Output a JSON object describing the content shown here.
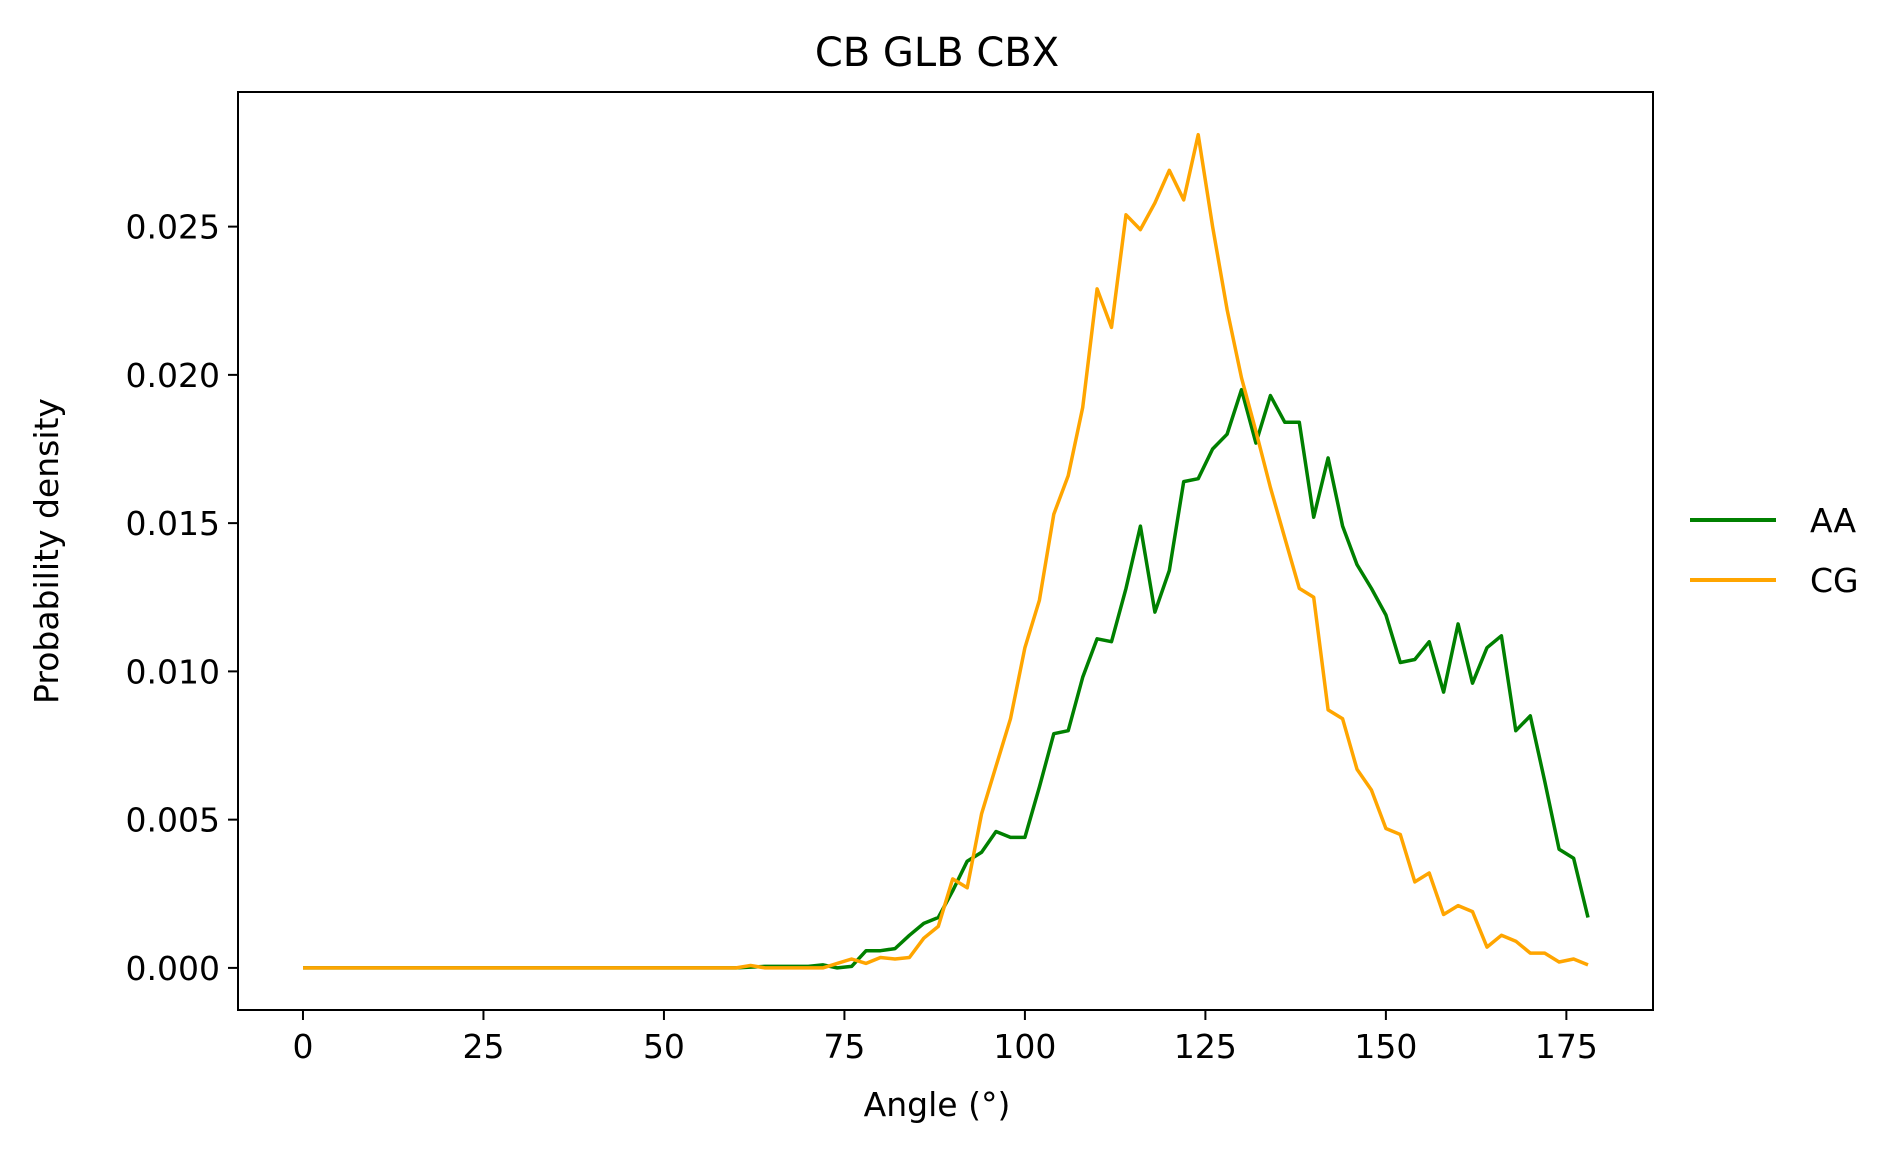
{
  "chart_data": {
    "type": "line",
    "title": "CB GLB CBX",
    "xlabel": "Angle (°)",
    "ylabel": "Probability density",
    "xlim": [
      -9,
      187
    ],
    "ylim": [
      -0.00142,
      0.02954
    ],
    "xticks": [
      0,
      25,
      50,
      75,
      100,
      125,
      150,
      175
    ],
    "yticks": [
      0.0,
      0.005,
      0.01,
      0.015,
      0.02,
      0.025
    ],
    "xtick_labels": [
      "0",
      "25",
      "50",
      "75",
      "100",
      "125",
      "150",
      "175"
    ],
    "ytick_labels": [
      "0.000",
      "0.005",
      "0.010",
      "0.015",
      "0.020",
      "0.025"
    ],
    "grid": false,
    "legend_position": "right-outside",
    "series": [
      {
        "name": "AA",
        "color": "#008000",
        "x": [
          0,
          60,
          64,
          70,
          72,
          74,
          76,
          78,
          80,
          82,
          84,
          86,
          88,
          90,
          92,
          94,
          96,
          98,
          100,
          102,
          104,
          106,
          108,
          110,
          112,
          114,
          116,
          118,
          120,
          122,
          124,
          126,
          128,
          130,
          132,
          134,
          136,
          138,
          140,
          142,
          144,
          146,
          148,
          150,
          152,
          154,
          156,
          158,
          160,
          162,
          164,
          166,
          168,
          170,
          172,
          174,
          176,
          178
        ],
        "y": [
          0.0,
          0.0,
          5e-05,
          5e-05,
          0.0001,
          0.0,
          5e-05,
          0.00058,
          0.00058,
          0.00065,
          0.0011,
          0.0015,
          0.0017,
          0.0026,
          0.0036,
          0.0039,
          0.0046,
          0.0044,
          0.0044,
          0.0061,
          0.0079,
          0.008,
          0.0098,
          0.0111,
          0.011,
          0.0128,
          0.0149,
          0.012,
          0.0134,
          0.0164,
          0.0165,
          0.0175,
          0.018,
          0.0195,
          0.0177,
          0.0193,
          0.0184,
          0.0184,
          0.0152,
          0.0172,
          0.0149,
          0.0136,
          0.0128,
          0.0119,
          0.0103,
          0.0104,
          0.011,
          0.0093,
          0.0116,
          0.0096,
          0.0108,
          0.0112,
          0.008,
          0.0085,
          0.0063,
          0.004,
          0.0037,
          0.0017
        ]
      },
      {
        "name": "CG",
        "color": "#FFA500",
        "x": [
          0,
          60,
          62,
          64,
          72,
          74,
          76,
          78,
          80,
          82,
          84,
          86,
          88,
          90,
          92,
          94,
          96,
          98,
          100,
          102,
          104,
          106,
          108,
          110,
          112,
          114,
          116,
          118,
          120,
          122,
          124,
          126,
          128,
          130,
          132,
          134,
          136,
          138,
          140,
          142,
          144,
          146,
          148,
          150,
          152,
          154,
          156,
          158,
          160,
          162,
          164,
          166,
          168,
          170,
          172,
          174,
          176,
          178
        ],
        "y": [
          0.0,
          0.0,
          8e-05,
          0.0,
          0.0,
          0.00015,
          0.0003,
          0.00015,
          0.00035,
          0.0003,
          0.00035,
          0.001,
          0.0014,
          0.003,
          0.0027,
          0.0052,
          0.0068,
          0.0084,
          0.0108,
          0.0124,
          0.0153,
          0.0166,
          0.0189,
          0.0229,
          0.0216,
          0.0254,
          0.0249,
          0.0258,
          0.0269,
          0.0259,
          0.0281,
          0.025,
          0.0222,
          0.0199,
          0.0181,
          0.0162,
          0.0145,
          0.0128,
          0.0125,
          0.0087,
          0.0084,
          0.0067,
          0.006,
          0.0047,
          0.0045,
          0.0029,
          0.0032,
          0.0018,
          0.0021,
          0.0019,
          0.0007,
          0.0011,
          0.0009,
          0.0005,
          0.0005,
          0.0002,
          0.0003,
          0.0001
        ]
      }
    ]
  }
}
